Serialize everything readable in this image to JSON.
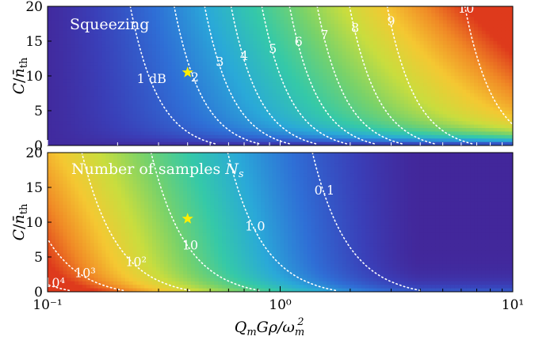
{
  "chart_data": [
    {
      "type": "heatmap",
      "title": "Squeezing",
      "ylabel": "C/n̄_th",
      "xlabel": "",
      "xscale": "log",
      "xlim": [
        0.1,
        10
      ],
      "ylim": [
        0,
        20
      ],
      "yticks": [
        "0",
        "5",
        "10",
        "15",
        "20"
      ],
      "contour_labels": [
        {
          "text": "1 dB",
          "x": 0.28,
          "y": 9.0
        },
        {
          "text": "2",
          "x": 0.43,
          "y": 9.2
        },
        {
          "text": "3",
          "x": 0.55,
          "y": 11.4
        },
        {
          "text": "4",
          "x": 0.7,
          "y": 12.3
        },
        {
          "text": "5",
          "x": 0.93,
          "y": 13.3
        },
        {
          "text": "6",
          "x": 1.2,
          "y": 14.3
        },
        {
          "text": "7",
          "x": 1.55,
          "y": 15.3
        },
        {
          "text": "8",
          "x": 2.1,
          "y": 16.3
        },
        {
          "text": "9",
          "x": 3.0,
          "y": 17.3
        },
        {
          "text": "10",
          "x": 6.3,
          "y": 19.1
        }
      ],
      "marker": {
        "type": "star",
        "x": 0.4,
        "y": 10.5,
        "color": "#ffee00"
      }
    },
    {
      "type": "heatmap",
      "title": "Number of samples N_s",
      "ylabel": "C/n̄_th",
      "xlabel": "Q_mGρ/ω_m²",
      "xscale": "log",
      "xlim": [
        0.1,
        10
      ],
      "ylim": [
        0,
        20
      ],
      "xticks": [
        "10⁻¹",
        "10⁰",
        "10¹"
      ],
      "yticks": [
        "0",
        "5",
        "10",
        "15",
        "20"
      ],
      "contour_labels": [
        {
          "text": "0.1",
          "x": 1.55,
          "y": 14.0
        },
        {
          "text": "1.0",
          "x": 0.78,
          "y": 8.8
        },
        {
          "text": "10",
          "x": 0.41,
          "y": 6.1
        },
        {
          "text": "10²",
          "x": 0.24,
          "y": 3.7
        },
        {
          "text": "10³",
          "x": 0.145,
          "y": 2.1
        },
        {
          "text": "10⁴",
          "x": 0.107,
          "y": 0.7
        }
      ],
      "marker": {
        "type": "star",
        "x": 0.4,
        "y": 10.5,
        "color": "#ffee00"
      }
    }
  ],
  "colormap": [
    "#471a8a",
    "#3a3fb8",
    "#2f6fd6",
    "#2aa9d8",
    "#35c9a8",
    "#78d26a",
    "#c9dd3e",
    "#f4c832",
    "#f08a26",
    "#de3a1c"
  ]
}
